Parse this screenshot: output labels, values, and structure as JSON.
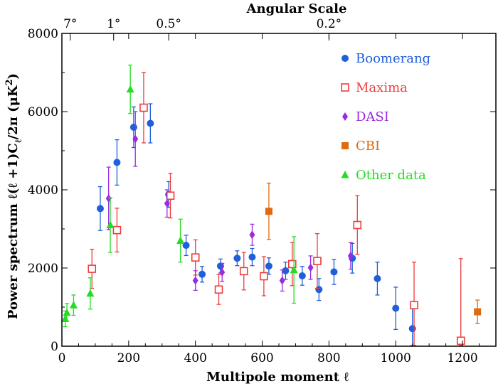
{
  "chart_data": {
    "type": "scatter",
    "title": "",
    "xlabel": "Multipole moment ℓ",
    "ylabel": "Power spectrum  ℓ(ℓ +1)C",
    "ylabel_parts": {
      "main": "Power spectrum  ℓ(ℓ +1)C",
      "sub": "ℓ",
      "after": "/2π  (μK",
      "sup": "2",
      "close": ")"
    },
    "top_axis": {
      "title": "Angular Scale",
      "ticks": [
        {
          "label": "7°",
          "ell": 25
        },
        {
          "label": "1°",
          "ell": 155
        },
        {
          "label": "0.5°",
          "ell": 320
        },
        {
          "label": "0.2°",
          "ell": 800
        }
      ]
    },
    "xlim": [
      0,
      1300
    ],
    "ylim": [
      0,
      8000
    ],
    "x_ticks": [
      0,
      200,
      400,
      600,
      800,
      1000,
      1200
    ],
    "y_ticks": [
      0,
      2000,
      4000,
      6000,
      8000
    ],
    "grid": false,
    "legend_position": "top-right",
    "series": [
      {
        "name": "Boomerang",
        "color": "#1f5fd9",
        "marker": "circle-filled",
        "points": [
          {
            "x": 115,
            "y": 3520,
            "err": 560
          },
          {
            "x": 165,
            "y": 4700,
            "err": 580
          },
          {
            "x": 215,
            "y": 5600,
            "err": 520
          },
          {
            "x": 265,
            "y": 5700,
            "err": 500
          },
          {
            "x": 320,
            "y": 3880,
            "err": 330
          },
          {
            "x": 372,
            "y": 2580,
            "err": 260
          },
          {
            "x": 420,
            "y": 1840,
            "err": 200
          },
          {
            "x": 475,
            "y": 2050,
            "err": 180
          },
          {
            "x": 525,
            "y": 2250,
            "err": 190
          },
          {
            "x": 570,
            "y": 2280,
            "err": 220
          },
          {
            "x": 620,
            "y": 2050,
            "err": 210
          },
          {
            "x": 670,
            "y": 1930,
            "err": 220
          },
          {
            "x": 720,
            "y": 1800,
            "err": 240
          },
          {
            "x": 770,
            "y": 1450,
            "err": 280
          },
          {
            "x": 815,
            "y": 1900,
            "err": 320
          },
          {
            "x": 870,
            "y": 2250,
            "err": 380
          },
          {
            "x": 945,
            "y": 1730,
            "err": 420
          },
          {
            "x": 1000,
            "y": 970,
            "err": 540
          },
          {
            "x": 1050,
            "y": 450,
            "err": 650
          }
        ]
      },
      {
        "name": "Maxima",
        "color": "#ee3c3c",
        "marker": "square-open",
        "points": [
          {
            "x": 90,
            "y": 1980,
            "err": 500
          },
          {
            "x": 165,
            "y": 2970,
            "err": 560
          },
          {
            "x": 245,
            "y": 6100,
            "err": 900
          },
          {
            "x": 325,
            "y": 3850,
            "err": 570
          },
          {
            "x": 400,
            "y": 2270,
            "err": 450
          },
          {
            "x": 470,
            "y": 1450,
            "err": 380
          },
          {
            "x": 545,
            "y": 1920,
            "err": 480
          },
          {
            "x": 605,
            "y": 1790,
            "err": 500
          },
          {
            "x": 690,
            "y": 2100,
            "err": 550
          },
          {
            "x": 765,
            "y": 2180,
            "err": 700
          },
          {
            "x": 885,
            "y": 3100,
            "err": 750
          },
          {
            "x": 1055,
            "y": 1050,
            "err": 1100
          },
          {
            "x": 1195,
            "y": 140,
            "err": 2100
          }
        ]
      },
      {
        "name": "DASI",
        "color": "#9a2be0",
        "marker": "diamond-filled",
        "points": [
          {
            "x": 140,
            "y": 3780,
            "err": 800
          },
          {
            "x": 220,
            "y": 5300,
            "err": 700
          },
          {
            "x": 315,
            "y": 3650,
            "err": 350
          },
          {
            "x": 400,
            "y": 1680,
            "err": 250
          },
          {
            "x": 480,
            "y": 1890,
            "err": 230
          },
          {
            "x": 570,
            "y": 2850,
            "err": 270
          },
          {
            "x": 660,
            "y": 1680,
            "err": 270
          },
          {
            "x": 745,
            "y": 2010,
            "err": 300
          },
          {
            "x": 865,
            "y": 2310,
            "err": 340
          }
        ]
      },
      {
        "name": "CBI",
        "color": "#e06a10",
        "marker": "square-filled",
        "points": [
          {
            "x": 620,
            "y": 3450,
            "err": 720
          },
          {
            "x": 1245,
            "y": 880,
            "err": 300
          }
        ]
      },
      {
        "name": "Other data",
        "color": "#22dd22",
        "marker": "triangle-filled",
        "points": [
          {
            "x": 10,
            "y": 700,
            "err": 200
          },
          {
            "x": 15,
            "y": 860,
            "err": 230
          },
          {
            "x": 35,
            "y": 1050,
            "err": 260
          },
          {
            "x": 85,
            "y": 1350,
            "err": 400
          },
          {
            "x": 145,
            "y": 3100,
            "err": 700
          },
          {
            "x": 205,
            "y": 6570,
            "err": 620
          },
          {
            "x": 355,
            "y": 2700,
            "err": 550
          },
          {
            "x": 695,
            "y": 1950,
            "err": 850
          }
        ]
      }
    ]
  }
}
